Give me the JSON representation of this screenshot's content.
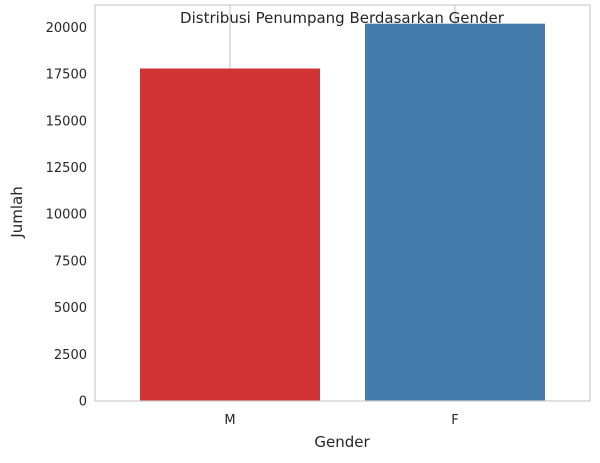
{
  "chart_data": {
    "type": "bar",
    "title": "Distribusi Penumpang Berdasarkan Gender",
    "xlabel": "Gender",
    "ylabel": "Jumlah",
    "categories": [
      "M",
      "F"
    ],
    "values": [
      17800,
      20200
    ],
    "colors": [
      "#cf3334",
      "#467cab"
    ],
    "ylim": [
      0,
      21200
    ],
    "yticks": [
      0,
      2500,
      5000,
      7500,
      10000,
      12500,
      15000,
      17500,
      20000
    ],
    "grid": "vertical-only",
    "legend": "none"
  }
}
